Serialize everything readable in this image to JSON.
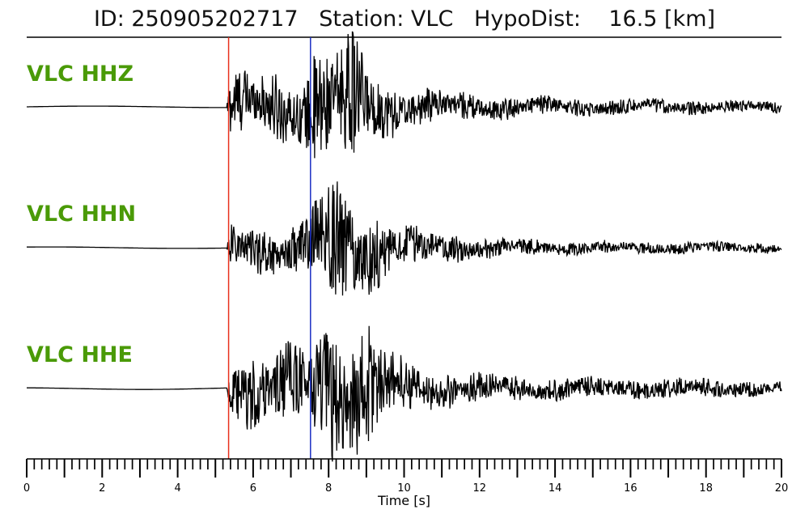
{
  "header": {
    "title": "ID: 250905202717   Station: VLC   HypoDist:    16.5 [km]"
  },
  "chart_data": {
    "type": "line",
    "title": "ID: 250905202717   Station: VLC   HypoDist:    16.5 [km]",
    "xlabel": "Time [s]",
    "ylabel": "",
    "xlim": [
      0,
      20
    ],
    "x_ticks": [
      0,
      2,
      4,
      6,
      8,
      10,
      12,
      14,
      16,
      18,
      20
    ],
    "minor_tick_step": 0.2,
    "grid": false,
    "picks": [
      {
        "phase": "P",
        "time": 5.35,
        "color": "#e8301c"
      },
      {
        "phase": "S",
        "time": 7.52,
        "color": "#1a2fc4"
      }
    ],
    "series": [
      {
        "name": "VLC HHZ",
        "color": "#000000",
        "envelope": [
          [
            0,
            0.02
          ],
          [
            5.3,
            0.02
          ],
          [
            5.4,
            0.55
          ],
          [
            6.5,
            0.55
          ],
          [
            7.5,
            0.6
          ],
          [
            7.6,
            1.0
          ],
          [
            8.7,
            1.0
          ],
          [
            9.5,
            0.45
          ],
          [
            10.5,
            0.3
          ],
          [
            12,
            0.2
          ],
          [
            14,
            0.15
          ],
          [
            17,
            0.12
          ],
          [
            20,
            0.09
          ]
        ]
      },
      {
        "name": "VLC HHN",
        "color": "#000000",
        "envelope": [
          [
            0,
            0.02
          ],
          [
            5.3,
            0.02
          ],
          [
            5.4,
            0.35
          ],
          [
            7.5,
            0.45
          ],
          [
            7.7,
            1.0
          ],
          [
            8.6,
            0.95
          ],
          [
            9.5,
            0.45
          ],
          [
            10.5,
            0.3
          ],
          [
            12,
            0.18
          ],
          [
            14,
            0.12
          ],
          [
            17,
            0.1
          ],
          [
            20,
            0.08
          ]
        ]
      },
      {
        "name": "VLC HHE",
        "color": "#000000",
        "envelope": [
          [
            0,
            0.02
          ],
          [
            5.3,
            0.03
          ],
          [
            5.4,
            0.6
          ],
          [
            7.5,
            0.65
          ],
          [
            7.7,
            1.1
          ],
          [
            9.1,
            1.1
          ],
          [
            9.8,
            0.5
          ],
          [
            11,
            0.3
          ],
          [
            13,
            0.2
          ],
          [
            16,
            0.18
          ],
          [
            20,
            0.12
          ]
        ]
      }
    ]
  }
}
